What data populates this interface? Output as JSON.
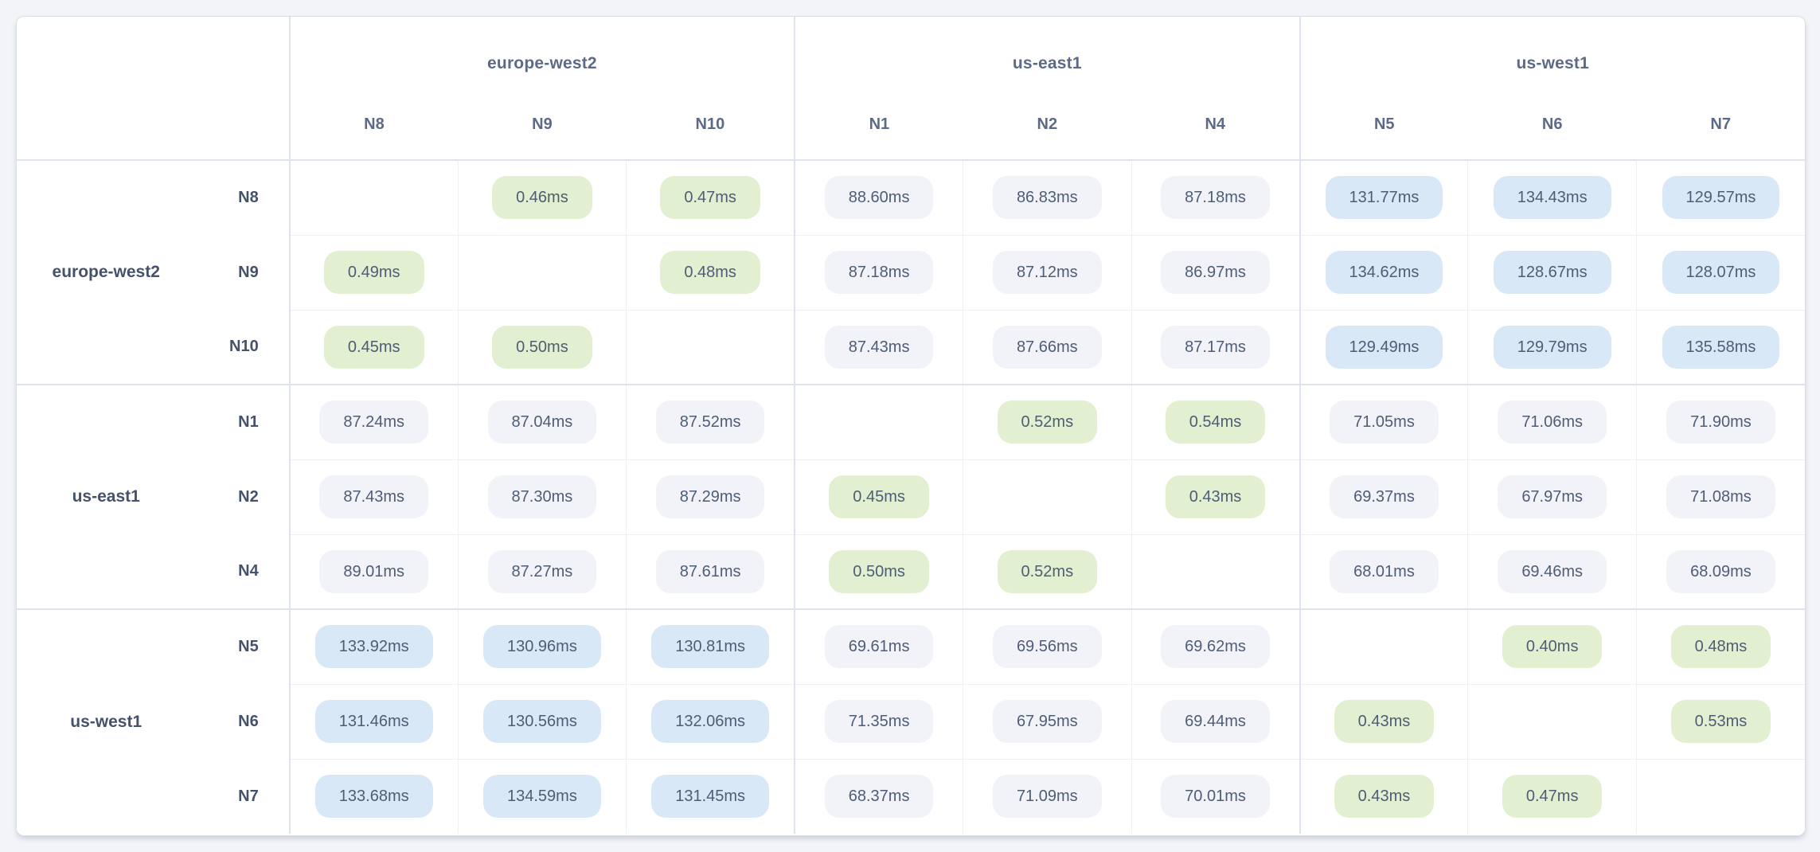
{
  "colors": {
    "page_bg": "#f3f4f8",
    "card_bg": "#ffffff",
    "border_light": "#eef0f6",
    "border_strong": "#dfe3ed",
    "header_text": "#5c6a87",
    "label_text": "#44526c",
    "pill_text": "#4e5d76",
    "pill_low_bg": "#e2efd0",
    "pill_mid_bg": "#f1f3f8",
    "pill_high_bg": "#d8e8f7"
  },
  "matrix": {
    "unit": "ms",
    "groups": [
      {
        "name": "europe-west2",
        "nodes": [
          "N8",
          "N9",
          "N10"
        ]
      },
      {
        "name": "us-east1",
        "nodes": [
          "N1",
          "N2",
          "N4"
        ]
      },
      {
        "name": "us-west1",
        "nodes": [
          "N5",
          "N6",
          "N7"
        ]
      }
    ],
    "columns": [
      "N8",
      "N9",
      "N10",
      "N1",
      "N2",
      "N4",
      "N5",
      "N6",
      "N7"
    ],
    "rows": [
      {
        "group": "europe-west2",
        "node": "N8",
        "cells": [
          null,
          {
            "value": "0.46ms",
            "level": "low"
          },
          {
            "value": "0.47ms",
            "level": "low"
          },
          {
            "value": "88.60ms",
            "level": "mid"
          },
          {
            "value": "86.83ms",
            "level": "mid"
          },
          {
            "value": "87.18ms",
            "level": "mid"
          },
          {
            "value": "131.77ms",
            "level": "high"
          },
          {
            "value": "134.43ms",
            "level": "high"
          },
          {
            "value": "129.57ms",
            "level": "high"
          }
        ]
      },
      {
        "group": "europe-west2",
        "node": "N9",
        "cells": [
          {
            "value": "0.49ms",
            "level": "low"
          },
          null,
          {
            "value": "0.48ms",
            "level": "low"
          },
          {
            "value": "87.18ms",
            "level": "mid"
          },
          {
            "value": "87.12ms",
            "level": "mid"
          },
          {
            "value": "86.97ms",
            "level": "mid"
          },
          {
            "value": "134.62ms",
            "level": "high"
          },
          {
            "value": "128.67ms",
            "level": "high"
          },
          {
            "value": "128.07ms",
            "level": "high"
          }
        ]
      },
      {
        "group": "europe-west2",
        "node": "N10",
        "cells": [
          {
            "value": "0.45ms",
            "level": "low"
          },
          {
            "value": "0.50ms",
            "level": "low"
          },
          null,
          {
            "value": "87.43ms",
            "level": "mid"
          },
          {
            "value": "87.66ms",
            "level": "mid"
          },
          {
            "value": "87.17ms",
            "level": "mid"
          },
          {
            "value": "129.49ms",
            "level": "high"
          },
          {
            "value": "129.79ms",
            "level": "high"
          },
          {
            "value": "135.58ms",
            "level": "high"
          }
        ]
      },
      {
        "group": "us-east1",
        "node": "N1",
        "cells": [
          {
            "value": "87.24ms",
            "level": "mid"
          },
          {
            "value": "87.04ms",
            "level": "mid"
          },
          {
            "value": "87.52ms",
            "level": "mid"
          },
          null,
          {
            "value": "0.52ms",
            "level": "low"
          },
          {
            "value": "0.54ms",
            "level": "low"
          },
          {
            "value": "71.05ms",
            "level": "mid"
          },
          {
            "value": "71.06ms",
            "level": "mid"
          },
          {
            "value": "71.90ms",
            "level": "mid"
          }
        ]
      },
      {
        "group": "us-east1",
        "node": "N2",
        "cells": [
          {
            "value": "87.43ms",
            "level": "mid"
          },
          {
            "value": "87.30ms",
            "level": "mid"
          },
          {
            "value": "87.29ms",
            "level": "mid"
          },
          {
            "value": "0.45ms",
            "level": "low"
          },
          null,
          {
            "value": "0.43ms",
            "level": "low"
          },
          {
            "value": "69.37ms",
            "level": "mid"
          },
          {
            "value": "67.97ms",
            "level": "mid"
          },
          {
            "value": "71.08ms",
            "level": "mid"
          }
        ]
      },
      {
        "group": "us-east1",
        "node": "N4",
        "cells": [
          {
            "value": "89.01ms",
            "level": "mid"
          },
          {
            "value": "87.27ms",
            "level": "mid"
          },
          {
            "value": "87.61ms",
            "level": "mid"
          },
          {
            "value": "0.50ms",
            "level": "low"
          },
          {
            "value": "0.52ms",
            "level": "low"
          },
          null,
          {
            "value": "68.01ms",
            "level": "mid"
          },
          {
            "value": "69.46ms",
            "level": "mid"
          },
          {
            "value": "68.09ms",
            "level": "mid"
          }
        ]
      },
      {
        "group": "us-west1",
        "node": "N5",
        "cells": [
          {
            "value": "133.92ms",
            "level": "high"
          },
          {
            "value": "130.96ms",
            "level": "high"
          },
          {
            "value": "130.81ms",
            "level": "high"
          },
          {
            "value": "69.61ms",
            "level": "mid"
          },
          {
            "value": "69.56ms",
            "level": "mid"
          },
          {
            "value": "69.62ms",
            "level": "mid"
          },
          null,
          {
            "value": "0.40ms",
            "level": "low"
          },
          {
            "value": "0.48ms",
            "level": "low"
          }
        ]
      },
      {
        "group": "us-west1",
        "node": "N6",
        "cells": [
          {
            "value": "131.46ms",
            "level": "high"
          },
          {
            "value": "130.56ms",
            "level": "high"
          },
          {
            "value": "132.06ms",
            "level": "high"
          },
          {
            "value": "71.35ms",
            "level": "mid"
          },
          {
            "value": "67.95ms",
            "level": "mid"
          },
          {
            "value": "69.44ms",
            "level": "mid"
          },
          {
            "value": "0.43ms",
            "level": "low"
          },
          null,
          {
            "value": "0.53ms",
            "level": "low"
          }
        ]
      },
      {
        "group": "us-west1",
        "node": "N7",
        "cells": [
          {
            "value": "133.68ms",
            "level": "high"
          },
          {
            "value": "134.59ms",
            "level": "high"
          },
          {
            "value": "131.45ms",
            "level": "high"
          },
          {
            "value": "68.37ms",
            "level": "mid"
          },
          {
            "value": "71.09ms",
            "level": "mid"
          },
          {
            "value": "70.01ms",
            "level": "mid"
          },
          {
            "value": "0.43ms",
            "level": "low"
          },
          {
            "value": "0.47ms",
            "level": "low"
          },
          null
        ]
      }
    ]
  }
}
